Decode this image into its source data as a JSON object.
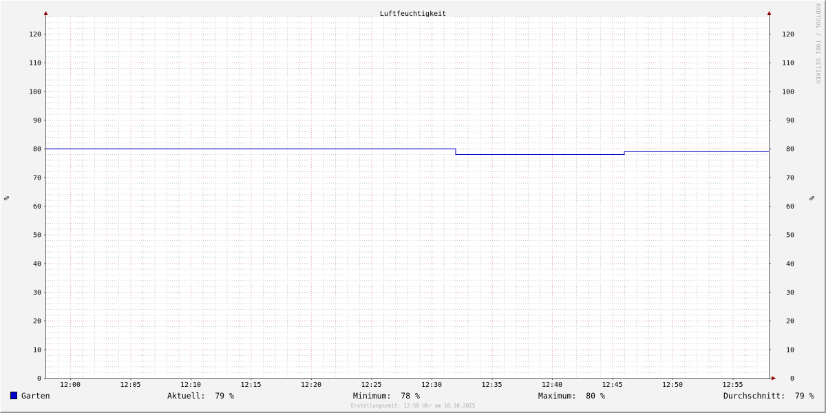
{
  "chart_data": {
    "type": "line",
    "title": "Luftfeuchtigkeit",
    "ylabel": "%",
    "ylabel_right": "%",
    "ylim": [
      0,
      126
    ],
    "yticks": [
      0,
      10,
      20,
      30,
      40,
      50,
      60,
      70,
      80,
      90,
      100,
      110,
      120
    ],
    "xlim": [
      "11:58",
      "12:58"
    ],
    "xticks": [
      "12:00",
      "12:05",
      "12:10",
      "12:15",
      "12:20",
      "12:25",
      "12:30",
      "12:35",
      "12:40",
      "12:45",
      "12:50",
      "12:55"
    ],
    "grid": true,
    "series": [
      {
        "name": "Garten",
        "color": "#0000cc",
        "points": [
          [
            "11:58",
            80
          ],
          [
            "12:32",
            80
          ],
          [
            "12:32",
            78
          ],
          [
            "12:46",
            78
          ],
          [
            "12:46",
            79
          ],
          [
            "12:58",
            79
          ]
        ]
      }
    ]
  },
  "legend": {
    "series_name": "Garten",
    "current": "Aktuell:  79 %",
    "minimum": "Minimum:  78 %",
    "maximum": "Maximum:  80 %",
    "average": "Durchschnitt:  79 %"
  },
  "footer": "Erstellungszeit: 12:58 Uhr am 10.10.2025",
  "watermark": "RRDTOOL / TOBI OETIKER",
  "colors": {
    "major_grid": "#e8b0b0",
    "minor_grid": "#cccccc",
    "axis": "#666666",
    "arrow": "#990000"
  }
}
